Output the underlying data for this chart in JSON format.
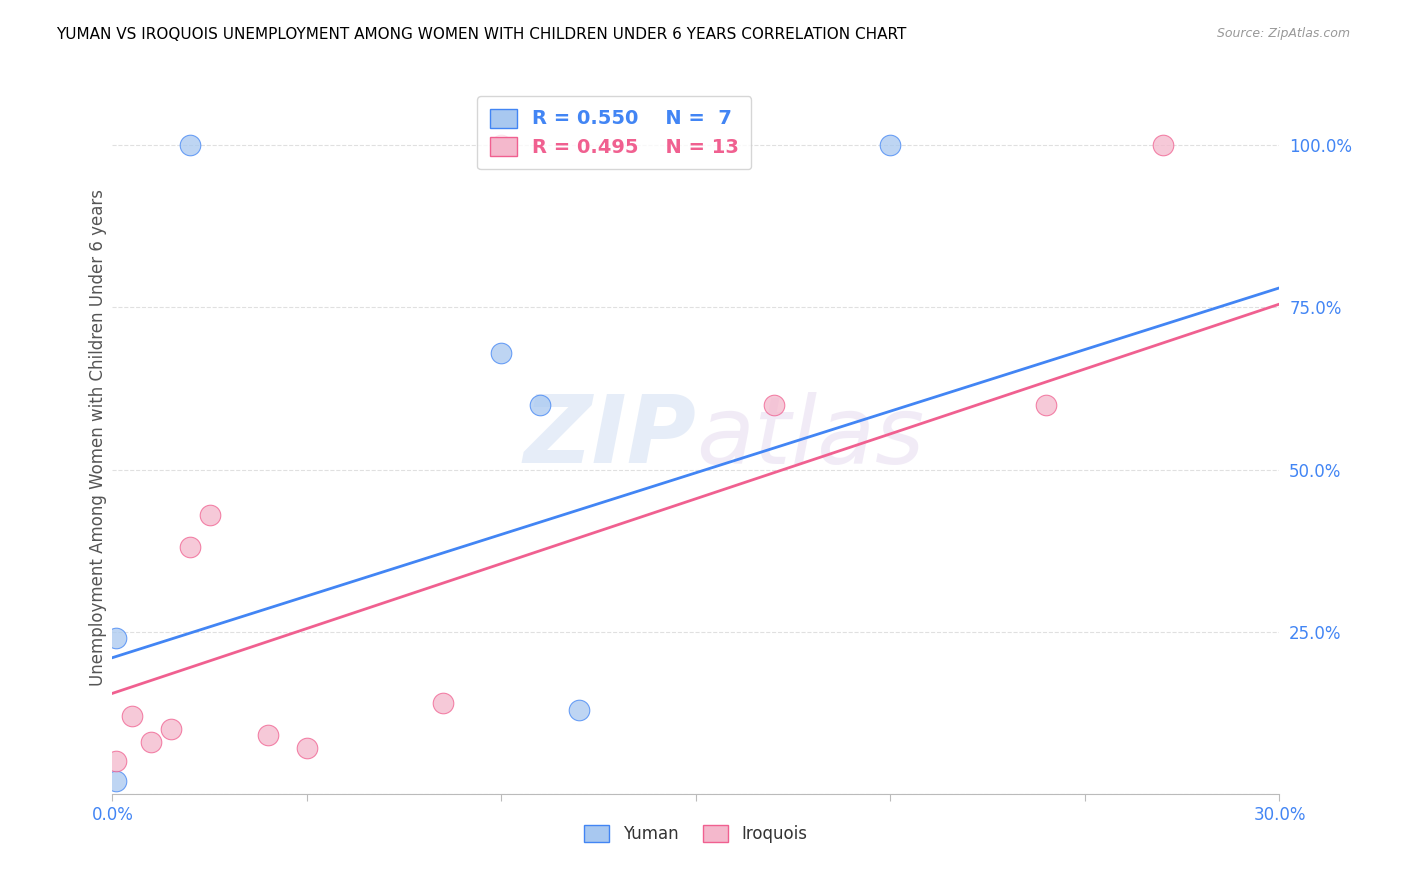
{
  "title": "YUMAN VS IROQUOIS UNEMPLOYMENT AMONG WOMEN WITH CHILDREN UNDER 6 YEARS CORRELATION CHART",
  "source": "Source: ZipAtlas.com",
  "xlabel": "",
  "ylabel": "Unemployment Among Women with Children Under 6 years",
  "xlim": [
    0.0,
    0.3
  ],
  "ylim": [
    0.0,
    1.1
  ],
  "xticks": [
    0.0,
    0.05,
    0.1,
    0.15,
    0.2,
    0.25,
    0.3
  ],
  "xticklabels": [
    "0.0%",
    "",
    "",
    "",
    "",
    "",
    "30.0%"
  ],
  "yticks": [
    0.0,
    0.25,
    0.5,
    0.75,
    1.0
  ],
  "yticklabels": [
    "",
    "25.0%",
    "50.0%",
    "75.0%",
    "100.0%"
  ],
  "yuman_x": [
    0.001,
    0.001,
    0.02,
    0.1,
    0.11,
    0.12,
    0.2
  ],
  "yuman_y": [
    0.02,
    0.24,
    1.0,
    0.68,
    0.6,
    0.13,
    1.0
  ],
  "iroquois_x": [
    0.001,
    0.005,
    0.01,
    0.015,
    0.02,
    0.025,
    0.04,
    0.05,
    0.085,
    0.1,
    0.17,
    0.24,
    0.27
  ],
  "iroquois_y": [
    0.05,
    0.12,
    0.08,
    0.1,
    0.38,
    0.43,
    0.09,
    0.07,
    0.14,
    1.0,
    0.6,
    0.6,
    1.0
  ],
  "yuman_color": "#a8c8f0",
  "iroquois_color": "#f4b8cc",
  "yuman_line_color": "#4285f4",
  "iroquois_line_color": "#f06090",
  "yuman_line_x0": 0.0,
  "yuman_line_y0": 0.21,
  "yuman_line_x1": 0.3,
  "yuman_line_y1": 0.78,
  "iroquois_line_x0": 0.0,
  "iroquois_line_y0": 0.155,
  "iroquois_line_x1": 0.3,
  "iroquois_line_y1": 0.755,
  "legend_r_yuman": "R = 0.550",
  "legend_n_yuman": "N =  7",
  "legend_r_iroquois": "R = 0.495",
  "legend_n_iroquois": "N = 13",
  "watermark_zip": "ZIP",
  "watermark_atlas": "atlas",
  "marker_size": 220,
  "background_color": "#ffffff",
  "grid_color": "#dddddd"
}
